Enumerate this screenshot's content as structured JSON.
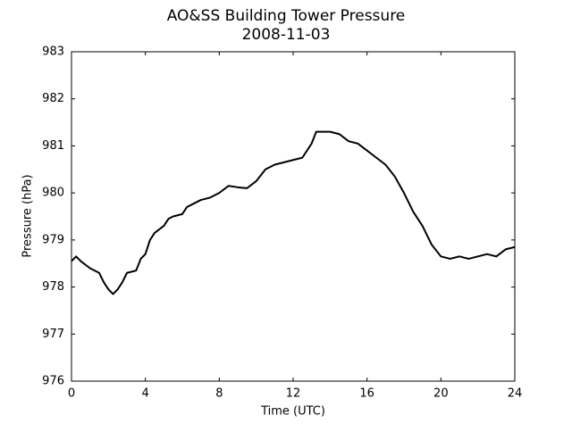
{
  "chart_data": {
    "type": "line",
    "title": "AO&SS Building Tower Pressure",
    "subtitle": "2008-11-03",
    "x_label": "Time (UTC)",
    "y_label": "Pressure (hPa)",
    "x": [
      0,
      0.25,
      0.5,
      1,
      1.5,
      1.75,
      2,
      2.25,
      2.5,
      2.75,
      3,
      3.5,
      3.75,
      4,
      4.25,
      4.5,
      5,
      5.25,
      5.5,
      6,
      6.25,
      6.5,
      7,
      7.5,
      8,
      8.5,
      9,
      9.5,
      10,
      10.5,
      11,
      11.5,
      12,
      12.5,
      13,
      13.25,
      13.5,
      14,
      14.5,
      15,
      15.5,
      16,
      16.5,
      17,
      17.5,
      18,
      18.5,
      19,
      19.5,
      20,
      20.5,
      21,
      21.5,
      22,
      22.5,
      23,
      23.5,
      24
    ],
    "series": [
      {
        "name": "Pressure",
        "color": "#000000",
        "values": [
          978.55,
          978.65,
          978.55,
          978.4,
          978.3,
          978.1,
          977.95,
          977.85,
          977.95,
          978.1,
          978.3,
          978.35,
          978.6,
          978.7,
          979.0,
          979.15,
          979.3,
          979.45,
          979.5,
          979.55,
          979.7,
          979.75,
          979.85,
          979.9,
          980.0,
          980.15,
          980.12,
          980.1,
          980.25,
          980.5,
          980.6,
          980.65,
          980.7,
          980.75,
          981.05,
          981.3,
          981.3,
          981.3,
          981.25,
          981.1,
          981.05,
          980.9,
          980.75,
          980.6,
          980.35,
          980.0,
          979.6,
          979.3,
          978.9,
          978.65,
          978.6,
          978.65,
          978.6,
          978.65,
          978.7,
          978.65,
          978.8,
          978.85
        ]
      }
    ],
    "xlim": [
      0,
      24
    ],
    "xticks": [
      0,
      4,
      8,
      12,
      16,
      20,
      24
    ],
    "ylim": [
      976,
      983
    ],
    "yticks": [
      976,
      977,
      978,
      979,
      980,
      981,
      982,
      983
    ],
    "grid": false
  }
}
